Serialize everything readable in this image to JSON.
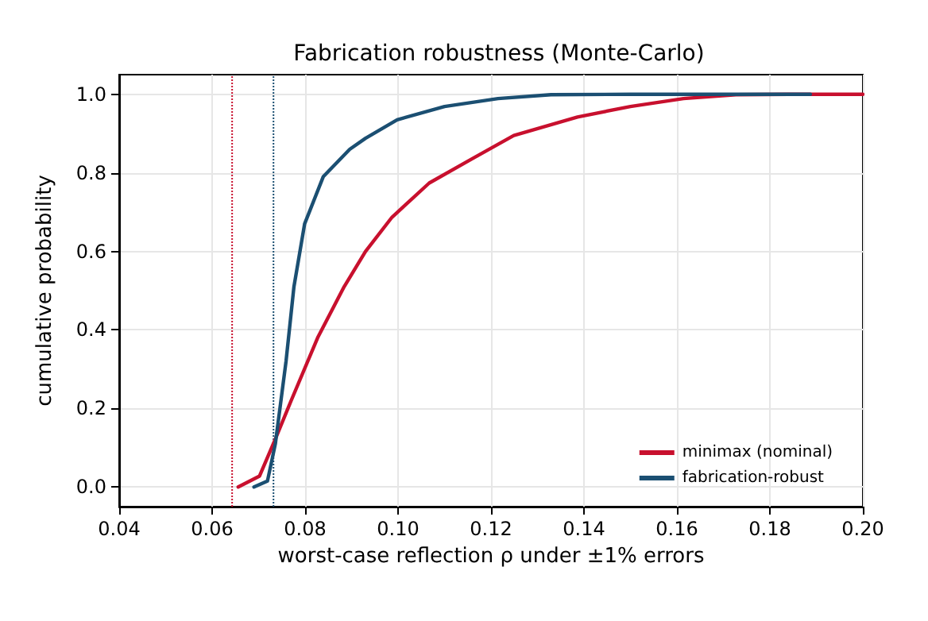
{
  "chart_data": {
    "type": "line",
    "title": "Fabrication robustness (Monte-Carlo)",
    "xlabel": "worst-case reflection ρ under ±1% errors",
    "ylabel": "cumulative probability",
    "series": [
      {
        "name": "minimax (nominal)",
        "color": "#c8102e",
        "x": [
          0.0656,
          0.0702,
          0.0736,
          0.077,
          0.0827,
          0.0884,
          0.093,
          0.0987,
          0.1067,
          0.1158,
          0.1249,
          0.1386,
          0.15,
          0.1614,
          0.1727,
          0.184,
          0.2
        ],
        "values": [
          0,
          0.028,
          0.122,
          0.22,
          0.38,
          0.51,
          0.6,
          0.687,
          0.774,
          0.835,
          0.895,
          0.942,
          0.969,
          0.989,
          0.999,
          1,
          1
        ]
      },
      {
        "name": "fabrication-robust",
        "color": "#1b4f72",
        "x": [
          0.069,
          0.0719,
          0.0736,
          0.0759,
          0.0776,
          0.0799,
          0.0839,
          0.0896,
          0.093,
          0.0998,
          0.11,
          0.1215,
          0.1329,
          0.15,
          0.1887
        ],
        "values": [
          0,
          0.015,
          0.11,
          0.32,
          0.51,
          0.67,
          0.79,
          0.86,
          0.888,
          0.935,
          0.969,
          0.989,
          0.999,
          1,
          1
        ]
      }
    ],
    "ref_lines": [
      {
        "axis": "x",
        "value": 0.0643,
        "color": "#c8102e",
        "line_style": "dotted"
      },
      {
        "axis": "x",
        "value": 0.0732,
        "color": "#1b4f72",
        "line_style": "dotted"
      }
    ],
    "xlim": [
      0.04,
      0.2
    ],
    "xticks": [
      {
        "value": 0.04,
        "label": "0.04"
      },
      {
        "value": 0.06,
        "label": "0.06"
      },
      {
        "value": 0.08,
        "label": "0.08"
      },
      {
        "value": 0.1,
        "label": "0.10"
      },
      {
        "value": 0.12,
        "label": "0.12"
      },
      {
        "value": 0.14,
        "label": "0.14"
      },
      {
        "value": 0.16,
        "label": "0.16"
      },
      {
        "value": 0.18,
        "label": "0.18"
      },
      {
        "value": 0.2,
        "label": "0.20"
      }
    ],
    "ylim": [
      -0.05,
      1.05
    ],
    "yticks": [
      {
        "value": 0,
        "label": "0.0"
      },
      {
        "value": 0.2,
        "label": "0.2"
      },
      {
        "value": 0.4,
        "label": "0.4"
      },
      {
        "value": 0.6,
        "label": "0.6"
      },
      {
        "value": 0.8,
        "label": "0.8"
      },
      {
        "value": 1,
        "label": "1.0"
      }
    ],
    "grid": true,
    "legend": "bottom right",
    "marker": "none",
    "line_style": "solid"
  }
}
